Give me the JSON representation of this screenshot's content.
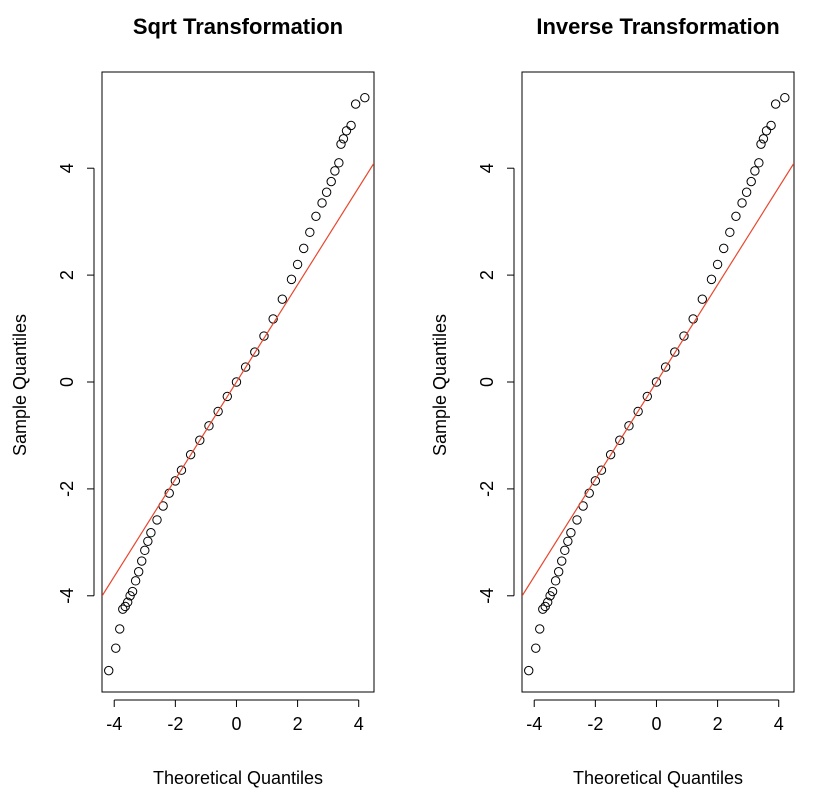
{
  "colors": {
    "points": "#000000",
    "reference_line": "#e8472e",
    "axes": "#000000",
    "background": "#ffffff"
  },
  "chart_data": [
    {
      "type": "scatter",
      "subtype": "normal-qq-plot",
      "title": "Sqrt Transformation",
      "xlabel": "Theoretical Quantiles",
      "ylabel": "Sample Quantiles",
      "xlim": [
        -4.4,
        4.5
      ],
      "ylim": [
        -5.8,
        5.8
      ],
      "xticks": [
        -4,
        -2,
        0,
        2,
        4
      ],
      "yticks": [
        -4,
        -2,
        0,
        2,
        4
      ],
      "xtick_labels": [
        "-4",
        "-2",
        "0",
        "2",
        "4"
      ],
      "ytick_labels": [
        "-4",
        "-2",
        "0",
        "2",
        "4"
      ],
      "grid": false,
      "marker": "open-circle",
      "reference_line": {
        "intercept": 0.0,
        "slope": 0.91
      },
      "points": [
        {
          "x": -4.18,
          "y": -5.4
        },
        {
          "x": -3.95,
          "y": -4.98
        },
        {
          "x": -3.82,
          "y": -4.62
        },
        {
          "x": -3.72,
          "y": -4.25
        },
        {
          "x": -3.64,
          "y": -4.2
        },
        {
          "x": -3.56,
          "y": -4.12
        },
        {
          "x": -3.48,
          "y": -4.0
        },
        {
          "x": -3.4,
          "y": -3.92
        },
        {
          "x": -3.3,
          "y": -3.72
        },
        {
          "x": -3.2,
          "y": -3.55
        },
        {
          "x": -3.1,
          "y": -3.35
        },
        {
          "x": -3.0,
          "y": -3.15
        },
        {
          "x": -2.9,
          "y": -2.98
        },
        {
          "x": -2.8,
          "y": -2.82
        },
        {
          "x": -2.6,
          "y": -2.58
        },
        {
          "x": -2.4,
          "y": -2.32
        },
        {
          "x": -2.2,
          "y": -2.08
        },
        {
          "x": -2.0,
          "y": -1.85
        },
        {
          "x": -1.8,
          "y": -1.65
        },
        {
          "x": -1.5,
          "y": -1.36
        },
        {
          "x": -1.2,
          "y": -1.09
        },
        {
          "x": -0.9,
          "y": -0.82
        },
        {
          "x": -0.6,
          "y": -0.55
        },
        {
          "x": -0.3,
          "y": -0.27
        },
        {
          "x": 0.0,
          "y": 0.0
        },
        {
          "x": 0.3,
          "y": 0.28
        },
        {
          "x": 0.6,
          "y": 0.56
        },
        {
          "x": 0.9,
          "y": 0.86
        },
        {
          "x": 1.2,
          "y": 1.18
        },
        {
          "x": 1.5,
          "y": 1.55
        },
        {
          "x": 1.8,
          "y": 1.92
        },
        {
          "x": 2.0,
          "y": 2.2
        },
        {
          "x": 2.2,
          "y": 2.5
        },
        {
          "x": 2.4,
          "y": 2.8
        },
        {
          "x": 2.6,
          "y": 3.1
        },
        {
          "x": 2.8,
          "y": 3.35
        },
        {
          "x": 2.95,
          "y": 3.55
        },
        {
          "x": 3.1,
          "y": 3.75
        },
        {
          "x": 3.22,
          "y": 3.95
        },
        {
          "x": 3.35,
          "y": 4.1
        },
        {
          "x": 3.42,
          "y": 4.45
        },
        {
          "x": 3.5,
          "y": 4.55
        },
        {
          "x": 3.6,
          "y": 4.7
        },
        {
          "x": 3.75,
          "y": 4.8
        },
        {
          "x": 3.9,
          "y": 5.2
        },
        {
          "x": 4.2,
          "y": 5.32
        }
      ]
    },
    {
      "type": "scatter",
      "subtype": "normal-qq-plot",
      "title": "Inverse Transformation",
      "xlabel": "Theoretical Quantiles",
      "ylabel": "Sample Quantiles",
      "xlim": [
        -4.4,
        4.5
      ],
      "ylim": [
        -5.8,
        5.8
      ],
      "xticks": [
        -4,
        -2,
        0,
        2,
        4
      ],
      "yticks": [
        -4,
        -2,
        0,
        2,
        4
      ],
      "xtick_labels": [
        "-4",
        "-2",
        "0",
        "2",
        "4"
      ],
      "ytick_labels": [
        "-4",
        "-2",
        "0",
        "2",
        "4"
      ],
      "grid": false,
      "marker": "open-circle",
      "reference_line": {
        "intercept": 0.0,
        "slope": 0.91
      },
      "points": [
        {
          "x": -4.18,
          "y": -5.4
        },
        {
          "x": -3.95,
          "y": -4.98
        },
        {
          "x": -3.82,
          "y": -4.62
        },
        {
          "x": -3.72,
          "y": -4.25
        },
        {
          "x": -3.64,
          "y": -4.2
        },
        {
          "x": -3.56,
          "y": -4.12
        },
        {
          "x": -3.48,
          "y": -4.0
        },
        {
          "x": -3.4,
          "y": -3.92
        },
        {
          "x": -3.3,
          "y": -3.72
        },
        {
          "x": -3.2,
          "y": -3.55
        },
        {
          "x": -3.1,
          "y": -3.35
        },
        {
          "x": -3.0,
          "y": -3.15
        },
        {
          "x": -2.9,
          "y": -2.98
        },
        {
          "x": -2.8,
          "y": -2.82
        },
        {
          "x": -2.6,
          "y": -2.58
        },
        {
          "x": -2.4,
          "y": -2.32
        },
        {
          "x": -2.2,
          "y": -2.08
        },
        {
          "x": -2.0,
          "y": -1.85
        },
        {
          "x": -1.8,
          "y": -1.65
        },
        {
          "x": -1.5,
          "y": -1.36
        },
        {
          "x": -1.2,
          "y": -1.09
        },
        {
          "x": -0.9,
          "y": -0.82
        },
        {
          "x": -0.6,
          "y": -0.55
        },
        {
          "x": -0.3,
          "y": -0.27
        },
        {
          "x": 0.0,
          "y": 0.0
        },
        {
          "x": 0.3,
          "y": 0.28
        },
        {
          "x": 0.6,
          "y": 0.56
        },
        {
          "x": 0.9,
          "y": 0.86
        },
        {
          "x": 1.2,
          "y": 1.18
        },
        {
          "x": 1.5,
          "y": 1.55
        },
        {
          "x": 1.8,
          "y": 1.92
        },
        {
          "x": 2.0,
          "y": 2.2
        },
        {
          "x": 2.2,
          "y": 2.5
        },
        {
          "x": 2.4,
          "y": 2.8
        },
        {
          "x": 2.6,
          "y": 3.1
        },
        {
          "x": 2.8,
          "y": 3.35
        },
        {
          "x": 2.95,
          "y": 3.55
        },
        {
          "x": 3.1,
          "y": 3.75
        },
        {
          "x": 3.22,
          "y": 3.95
        },
        {
          "x": 3.35,
          "y": 4.1
        },
        {
          "x": 3.42,
          "y": 4.45
        },
        {
          "x": 3.5,
          "y": 4.55
        },
        {
          "x": 3.6,
          "y": 4.7
        },
        {
          "x": 3.75,
          "y": 4.8
        },
        {
          "x": 3.9,
          "y": 5.2
        },
        {
          "x": 4.2,
          "y": 5.32
        }
      ]
    }
  ]
}
